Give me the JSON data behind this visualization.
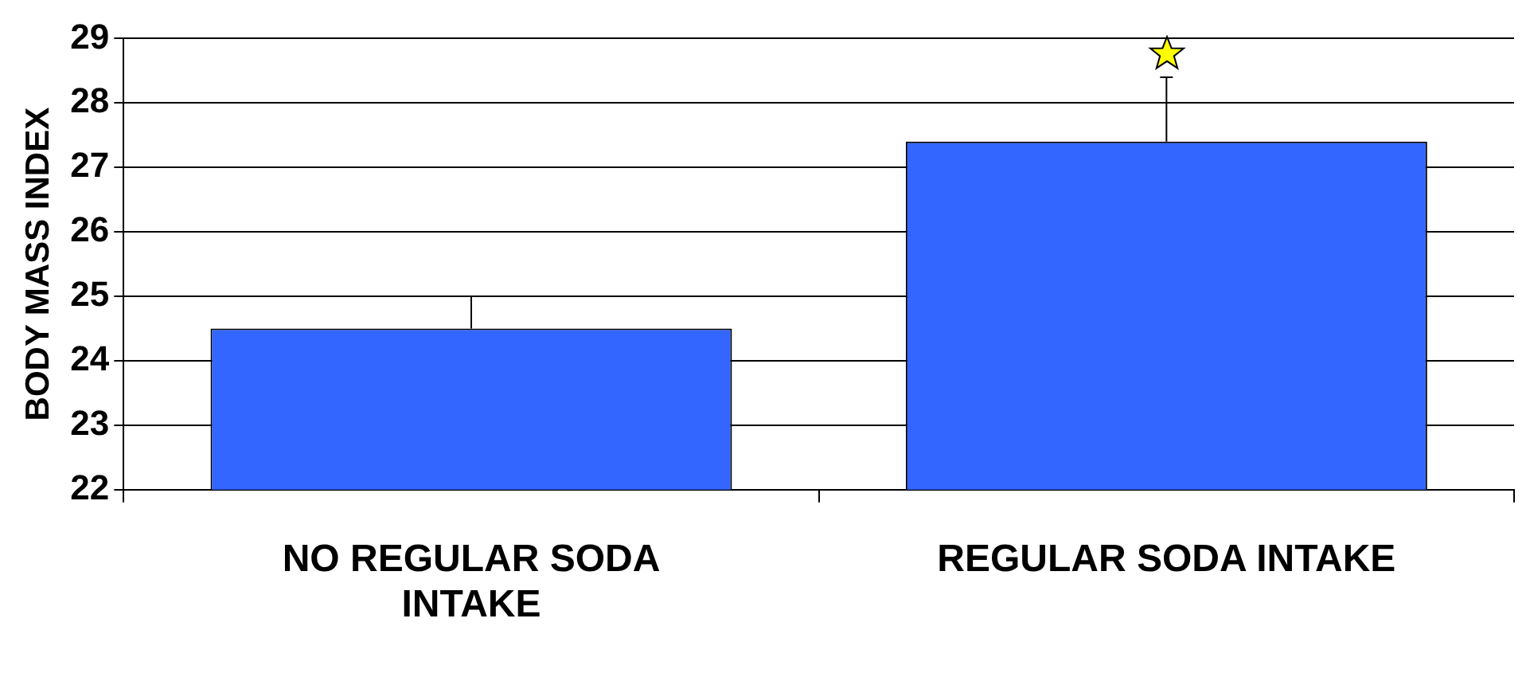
{
  "chart_data": {
    "type": "bar",
    "ylabel": "BODY MASS INDEX",
    "categories": [
      "NO REGULAR SODA INTAKE",
      "REGULAR SODA INTAKE"
    ],
    "values": [
      24.5,
      27.4
    ],
    "errors": [
      [
        24.5,
        25.0
      ],
      [
        27.4,
        28.4
      ]
    ],
    "color": "#3366ff",
    "ylim": [
      22,
      29
    ],
    "yticks": [
      22,
      23,
      24,
      25,
      26,
      27,
      28,
      29
    ],
    "grid": "y",
    "legend": false
  }
}
